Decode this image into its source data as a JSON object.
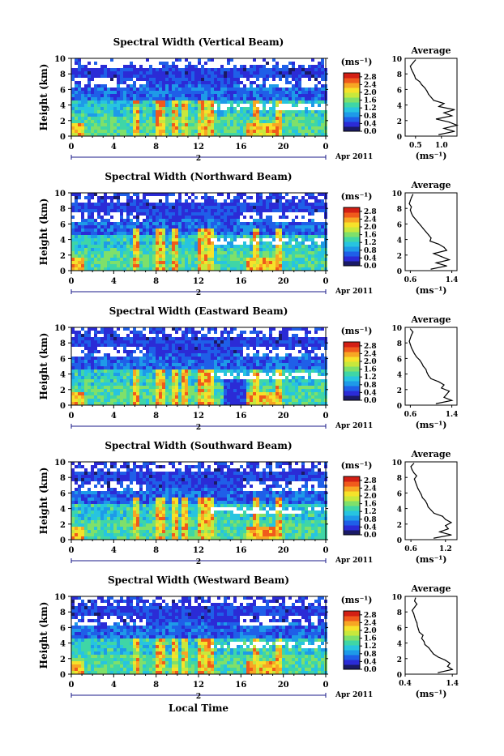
{
  "footer_label": "Local Time",
  "colors": {
    "colorbar": [
      "#1a1a66",
      "#2b2bd6",
      "#1f5fe8",
      "#1e9ae8",
      "#27c4e0",
      "#3fd6a6",
      "#7fe06a",
      "#c8e83c",
      "#f6e22a",
      "#f7a624",
      "#f05a1c",
      "#d31f14"
    ],
    "field_low": "#3b3bd8",
    "field_mid": "#2aa8e8",
    "field_green": "#5fd89a",
    "field_hot": "#e8401a",
    "gap": "#ffffff"
  },
  "panels": [
    {
      "title": "Spectral Width (Vertical Beam)",
      "ylabel": "Height (km)",
      "unit": "(ms⁻¹)",
      "date": "Apr 2011",
      "day": "2",
      "avg_title": "Average",
      "avg_unit": "(ms⁻¹)"
    },
    {
      "title": "Spectral Width (Northward Beam)",
      "ylabel": "Height (km)",
      "unit": "(ms⁻¹)",
      "date": "Apr 2011",
      "day": "2",
      "avg_title": "Average",
      "avg_unit": "(ms⁻¹)"
    },
    {
      "title": "Spectral Width (Eastward Beam)",
      "ylabel": "Height (km)",
      "unit": "(ms⁻¹)",
      "date": "Apr 2011",
      "day": "2",
      "avg_title": "Average",
      "avg_unit": "(ms⁻¹)"
    },
    {
      "title": "Spectral Width (Southward Beam)",
      "ylabel": "Height (km)",
      "unit": "(ms⁻¹)",
      "date": "Apr 2011",
      "day": "2",
      "avg_title": "Average",
      "avg_unit": "(ms⁻¹)"
    },
    {
      "title": "Spectral Width (Westward Beam)",
      "ylabel": "Height (km)",
      "unit": "(ms⁻¹)",
      "date": "Apr 2011",
      "day": "2",
      "avg_title": "Average",
      "avg_unit": "(ms⁻¹)"
    }
  ],
  "chart_data": [
    {
      "type": "heatmap",
      "title": "Spectral Width (Vertical Beam)",
      "ylabel": "Height (km)",
      "xlim": [
        0,
        24
      ],
      "ylim": [
        0,
        10
      ],
      "x_ticks": [
        "0",
        "4",
        "8",
        "12",
        "16",
        "20",
        "0"
      ],
      "y_ticks": [
        "0",
        "2",
        "4",
        "6",
        "8",
        "10"
      ],
      "colorbar": {
        "label": "(ms⁻¹)",
        "ticks": [
          "0.0",
          "0.4",
          "0.8",
          "1.2",
          "1.6",
          "2.0",
          "2.4",
          "2.8"
        ],
        "range": [
          0,
          3.0
        ]
      },
      "strong_features_hours": [
        6.2,
        8.4,
        9.7,
        10.6,
        12.4,
        13.2,
        17.5,
        19.5
      ],
      "average_profile": {
        "title": "Average",
        "xlabel": "(ms⁻¹)",
        "xlim": [
          0.3,
          1.3
        ],
        "x_ticks": [
          "0.5",
          "1.0"
        ],
        "y_ticks": [
          "0",
          "2",
          "4",
          "6",
          "8",
          "10"
        ],
        "height_km": [
          0.2,
          0.6,
          1.0,
          1.4,
          1.8,
          2.2,
          2.6,
          3.0,
          3.4,
          3.8,
          4.2,
          4.6,
          5.0,
          5.4,
          5.8,
          6.2,
          6.6,
          7.0,
          7.4,
          7.8,
          8.2,
          8.6,
          9.0,
          9.4,
          9.8
        ],
        "values": [
          0.95,
          1.25,
          1.05,
          1.3,
          1.15,
          0.9,
          1.2,
          1.05,
          1.25,
          0.95,
          1.05,
          0.85,
          0.8,
          0.75,
          0.72,
          0.68,
          0.62,
          0.58,
          0.5,
          0.48,
          0.45,
          0.42,
          0.4,
          0.45,
          0.5
        ]
      }
    },
    {
      "type": "heatmap",
      "title": "Spectral Width (Northward Beam)",
      "ylabel": "Height (km)",
      "xlim": [
        0,
        24
      ],
      "ylim": [
        0,
        10
      ],
      "x_ticks": [
        "0",
        "4",
        "8",
        "12",
        "16",
        "20",
        "0"
      ],
      "y_ticks": [
        "0",
        "2",
        "4",
        "6",
        "8",
        "10"
      ],
      "colorbar": {
        "label": "(ms⁻¹)",
        "ticks": [
          "0.0",
          "0.4",
          "0.8",
          "1.2",
          "1.6",
          "2.0",
          "2.4",
          "2.8"
        ],
        "range": [
          0,
          3.0
        ]
      },
      "strong_features_hours": [
        6.2,
        8.4,
        9.7,
        12.4,
        13.2,
        17.5,
        19.5
      ],
      "average_profile": {
        "title": "Average",
        "xlabel": "(ms⁻¹)",
        "xlim": [
          0.5,
          1.5
        ],
        "x_ticks": [
          "0.6",
          "1.4"
        ],
        "y_ticks": [
          "0",
          "2",
          "4",
          "6",
          "8",
          "10"
        ],
        "height_km": [
          0.2,
          0.6,
          1.0,
          1.4,
          1.8,
          2.2,
          2.6,
          3.0,
          3.4,
          3.8,
          4.2,
          4.6,
          5.0,
          5.4,
          5.8,
          6.2,
          6.6,
          7.0,
          7.4,
          7.8,
          8.2,
          8.6,
          9.0,
          9.4,
          9.8
        ],
        "values": [
          1.0,
          1.3,
          1.1,
          1.35,
          1.2,
          1.05,
          1.3,
          1.25,
          1.15,
          0.98,
          1.0,
          0.95,
          0.9,
          0.85,
          0.8,
          0.75,
          0.7,
          0.65,
          0.62,
          0.6,
          0.62,
          0.58,
          0.6,
          0.62,
          0.65
        ]
      }
    },
    {
      "type": "heatmap",
      "title": "Spectral Width (Eastward Beam)",
      "ylabel": "Height (km)",
      "xlim": [
        0,
        24
      ],
      "ylim": [
        0,
        10
      ],
      "x_ticks": [
        "0",
        "4",
        "8",
        "12",
        "16",
        "20",
        "0"
      ],
      "y_ticks": [
        "0",
        "2",
        "4",
        "6",
        "8",
        "10"
      ],
      "colorbar": {
        "label": "(ms⁻¹)",
        "ticks": [
          "0.0",
          "0.4",
          "0.8",
          "1.2",
          "1.6",
          "2.0",
          "2.4",
          "2.8"
        ],
        "range": [
          0,
          3.0
        ]
      },
      "strong_features_hours": [
        6.2,
        8.4,
        9.7,
        10.6,
        12.4,
        13.2,
        17.5,
        19.5
      ],
      "average_profile": {
        "title": "Average",
        "xlabel": "(ms⁻¹)",
        "xlim": [
          0.5,
          1.5
        ],
        "x_ticks": [
          "0.6",
          "1.4"
        ],
        "y_ticks": [
          "0",
          "2",
          "4",
          "6",
          "8",
          "10"
        ],
        "height_km": [
          0.2,
          0.6,
          1.0,
          1.4,
          1.8,
          2.2,
          2.6,
          3.0,
          3.4,
          3.8,
          4.2,
          4.6,
          5.0,
          5.4,
          5.8,
          6.2,
          6.6,
          7.0,
          7.4,
          7.8,
          8.2,
          8.6,
          9.0,
          9.4,
          9.8
        ],
        "values": [
          1.1,
          1.4,
          1.25,
          1.3,
          1.35,
          1.2,
          1.25,
          1.15,
          1.0,
          0.95,
          0.92,
          0.9,
          0.85,
          0.82,
          0.78,
          0.72,
          0.68,
          0.65,
          0.62,
          0.6,
          0.58,
          0.6,
          0.62,
          0.65,
          0.6
        ]
      }
    },
    {
      "type": "heatmap",
      "title": "Spectral Width (Southward Beam)",
      "ylabel": "Height (km)",
      "xlim": [
        0,
        24
      ],
      "ylim": [
        0,
        10
      ],
      "x_ticks": [
        "0",
        "4",
        "8",
        "12",
        "16",
        "20",
        "0"
      ],
      "y_ticks": [
        "0",
        "2",
        "4",
        "6",
        "8",
        "10"
      ],
      "colorbar": {
        "label": "(ms⁻¹)",
        "ticks": [
          "0.0",
          "0.4",
          "0.8",
          "1.2",
          "1.6",
          "2.0",
          "2.4",
          "2.8"
        ],
        "range": [
          0,
          3.0
        ]
      },
      "strong_features_hours": [
        6.2,
        8.4,
        9.7,
        10.6,
        12.4,
        13.2,
        17.5,
        19.5
      ],
      "average_profile": {
        "title": "Average",
        "xlabel": "(ms⁻¹)",
        "xlim": [
          0.5,
          1.4
        ],
        "x_ticks": [
          "0.6",
          "1.2"
        ],
        "y_ticks": [
          "0",
          "2",
          "4",
          "6",
          "8",
          "10"
        ],
        "height_km": [
          0.2,
          0.6,
          1.0,
          1.4,
          1.8,
          2.2,
          2.6,
          3.0,
          3.4,
          3.8,
          4.2,
          4.6,
          5.0,
          5.4,
          5.8,
          6.2,
          6.6,
          7.0,
          7.4,
          7.8,
          8.2,
          8.6,
          9.0,
          9.4,
          9.8
        ],
        "values": [
          1.0,
          1.3,
          1.1,
          1.25,
          1.2,
          1.3,
          1.2,
          1.15,
          1.0,
          0.95,
          0.9,
          0.88,
          0.85,
          0.8,
          0.78,
          0.75,
          0.72,
          0.7,
          0.68,
          0.66,
          0.7,
          0.65,
          0.62,
          0.6,
          0.65
        ]
      }
    },
    {
      "type": "heatmap",
      "title": "Spectral Width (Westward Beam)",
      "ylabel": "Height (km)",
      "xlabel": "Local Time",
      "xlim": [
        0,
        24
      ],
      "ylim": [
        0,
        10
      ],
      "x_ticks": [
        "0",
        "4",
        "8",
        "12",
        "16",
        "20",
        "0"
      ],
      "y_ticks": [
        "0",
        "2",
        "4",
        "6",
        "8",
        "10"
      ],
      "colorbar": {
        "label": "(ms⁻¹)",
        "ticks": [
          "0.0",
          "0.4",
          "0.8",
          "1.2",
          "1.6",
          "2.0",
          "2.4",
          "2.8"
        ],
        "range": [
          0,
          3.0
        ]
      },
      "strong_features_hours": [
        6.2,
        8.4,
        9.7,
        10.6,
        12.4,
        13.2,
        17.5,
        19.5
      ],
      "average_profile": {
        "title": "Average",
        "xlabel": "(ms⁻¹)",
        "xlim": [
          0.4,
          1.5
        ],
        "x_ticks": [
          "0.4",
          "1.4"
        ],
        "y_ticks": [
          "0",
          "2",
          "4",
          "6",
          "8",
          "10"
        ],
        "height_km": [
          0.2,
          0.6,
          1.0,
          1.4,
          1.8,
          2.2,
          2.6,
          3.0,
          3.4,
          3.8,
          4.2,
          4.6,
          5.0,
          5.4,
          5.8,
          6.2,
          6.6,
          7.0,
          7.4,
          7.8,
          8.2,
          8.6,
          9.0,
          9.4,
          9.8
        ],
        "values": [
          1.1,
          1.4,
          1.3,
          1.35,
          1.25,
          1.1,
          1.0,
          0.95,
          0.9,
          0.82,
          0.8,
          0.75,
          0.78,
          0.7,
          0.68,
          0.66,
          0.65,
          0.62,
          0.6,
          0.58,
          0.55,
          0.6,
          0.65,
          0.6,
          0.62
        ]
      }
    }
  ]
}
